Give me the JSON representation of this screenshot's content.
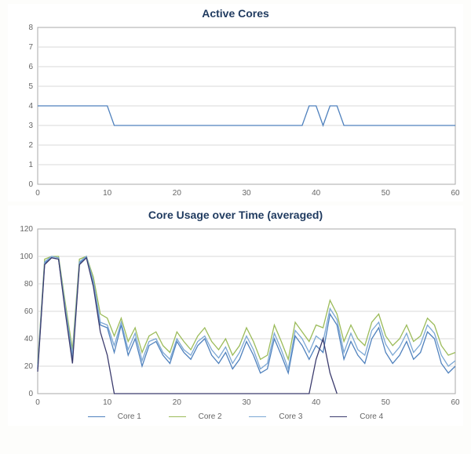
{
  "chart1": {
    "type": "line",
    "title": "Active Cores",
    "title_color": "#1f3a5f",
    "title_fontsize": 14,
    "background_color": "#ffffff",
    "grid_color": "#d9d9d9",
    "axis_color": "#a9a9a9",
    "tick_fontsize": 10,
    "tick_color": "#666666",
    "xlim": [
      0,
      60
    ],
    "ylim": [
      0,
      8
    ],
    "xtick_step": 10,
    "ytick_step": 1,
    "line_color": "#4f81bd",
    "line_width": 1.3,
    "data": {
      "x": [
        0,
        1,
        2,
        3,
        4,
        5,
        6,
        7,
        8,
        9,
        10,
        11,
        12,
        13,
        14,
        15,
        16,
        17,
        18,
        19,
        20,
        21,
        22,
        23,
        24,
        25,
        26,
        27,
        28,
        29,
        30,
        31,
        32,
        33,
        34,
        35,
        36,
        37,
        38,
        39,
        40,
        41,
        42,
        43,
        44,
        45,
        46,
        47,
        48,
        49,
        50,
        51,
        52,
        53,
        54,
        55,
        56,
        57,
        58,
        59,
        60
      ],
      "y": [
        4,
        4,
        4,
        4,
        4,
        4,
        4,
        4,
        4,
        4,
        4,
        3,
        3,
        3,
        3,
        3,
        3,
        3,
        3,
        3,
        3,
        3,
        3,
        3,
        3,
        3,
        3,
        3,
        3,
        3,
        3,
        3,
        3,
        3,
        3,
        3,
        3,
        3,
        3,
        4,
        4,
        3,
        4,
        4,
        3,
        3,
        3,
        3,
        3,
        3,
        3,
        3,
        3,
        3,
        3,
        3,
        3,
        3,
        3,
        3,
        3
      ]
    }
  },
  "chart2": {
    "type": "line",
    "title": "Core Usage over Time (averaged)",
    "title_color": "#1f3a5f",
    "title_fontsize": 14,
    "background_color": "#ffffff",
    "grid_color": "#d9d9d9",
    "axis_color": "#a9a9a9",
    "tick_fontsize": 10,
    "tick_color": "#666666",
    "xlim": [
      0,
      60
    ],
    "ylim": [
      0,
      120
    ],
    "xtick_step": 10,
    "ytick_step": 20,
    "line_width": 1.3,
    "series": [
      {
        "name": "Core 1",
        "color": "#4f81bd",
        "x": [
          0,
          1,
          2,
          3,
          4,
          5,
          6,
          7,
          8,
          9,
          10,
          11,
          12,
          13,
          14,
          15,
          16,
          17,
          18,
          19,
          20,
          21,
          22,
          23,
          24,
          25,
          26,
          27,
          28,
          29,
          30,
          31,
          32,
          33,
          34,
          35,
          36,
          37,
          38,
          39,
          40,
          41,
          42,
          43,
          44,
          45,
          46,
          47,
          48,
          49,
          50,
          51,
          52,
          53,
          54,
          55,
          56,
          57,
          58,
          59,
          60
        ],
        "y": [
          18,
          95,
          99,
          98,
          60,
          25,
          95,
          100,
          80,
          50,
          48,
          30,
          50,
          28,
          40,
          20,
          35,
          38,
          28,
          22,
          38,
          30,
          25,
          35,
          40,
          28,
          22,
          30,
          18,
          25,
          38,
          28,
          15,
          18,
          40,
          28,
          15,
          42,
          35,
          25,
          35,
          30,
          58,
          50,
          25,
          38,
          28,
          22,
          40,
          48,
          30,
          22,
          28,
          38,
          25,
          30,
          45,
          40,
          22,
          15,
          20
        ]
      },
      {
        "name": "Core 2",
        "color": "#9bbb59",
        "x": [
          0,
          1,
          2,
          3,
          4,
          5,
          6,
          7,
          8,
          9,
          10,
          11,
          12,
          13,
          14,
          15,
          16,
          17,
          18,
          19,
          20,
          21,
          22,
          23,
          24,
          25,
          26,
          27,
          28,
          29,
          30,
          31,
          32,
          33,
          34,
          35,
          36,
          37,
          38,
          39,
          40,
          41,
          42,
          43,
          44,
          45,
          46,
          47,
          48,
          49,
          50,
          51,
          52,
          53,
          54,
          55,
          56,
          57,
          58,
          59,
          60
        ],
        "y": [
          22,
          98,
          100,
          100,
          65,
          32,
          98,
          100,
          85,
          58,
          55,
          42,
          55,
          38,
          48,
          30,
          42,
          45,
          35,
          30,
          45,
          38,
          32,
          42,
          48,
          38,
          32,
          40,
          28,
          35,
          48,
          38,
          25,
          28,
          50,
          38,
          25,
          52,
          45,
          38,
          50,
          48,
          68,
          58,
          38,
          50,
          40,
          35,
          52,
          58,
          42,
          35,
          40,
          50,
          38,
          42,
          55,
          50,
          35,
          28,
          30
        ]
      },
      {
        "name": "Core 3",
        "color": "#7ba7d4",
        "x": [
          0,
          1,
          2,
          3,
          4,
          5,
          6,
          7,
          8,
          9,
          10,
          11,
          12,
          13,
          14,
          15,
          16,
          17,
          18,
          19,
          20,
          21,
          22,
          23,
          24,
          25,
          26,
          27,
          28,
          29,
          30,
          31,
          32,
          33,
          34,
          35,
          36,
          37,
          38,
          39,
          40,
          41,
          42,
          43,
          44,
          45,
          46,
          47,
          48,
          49,
          50,
          51,
          52,
          53,
          54,
          55,
          56,
          57,
          58,
          59,
          60
        ],
        "y": [
          20,
          96,
          100,
          99,
          62,
          28,
          96,
          100,
          82,
          52,
          50,
          35,
          52,
          32,
          44,
          24,
          38,
          40,
          30,
          25,
          40,
          32,
          28,
          38,
          42,
          32,
          26,
          34,
          22,
          30,
          42,
          32,
          18,
          22,
          44,
          32,
          18,
          46,
          40,
          30,
          42,
          38,
          62,
          54,
          30,
          44,
          32,
          28,
          46,
          52,
          36,
          28,
          34,
          44,
          30,
          36,
          50,
          44,
          28,
          20,
          24
        ]
      },
      {
        "name": "Core 4",
        "color": "#3b3b6d",
        "x": [
          0,
          1,
          2,
          3,
          4,
          5,
          6,
          7,
          8,
          9,
          10,
          11,
          39,
          40,
          41,
          42,
          43
        ],
        "y": [
          16,
          94,
          99,
          98,
          58,
          22,
          94,
          99,
          78,
          45,
          28,
          0,
          0,
          25,
          40,
          15,
          0
        ]
      }
    ],
    "legend": {
      "position": "bottom",
      "items": [
        "Core 1",
        "Core 2",
        "Core 3",
        "Core 4"
      ]
    }
  }
}
